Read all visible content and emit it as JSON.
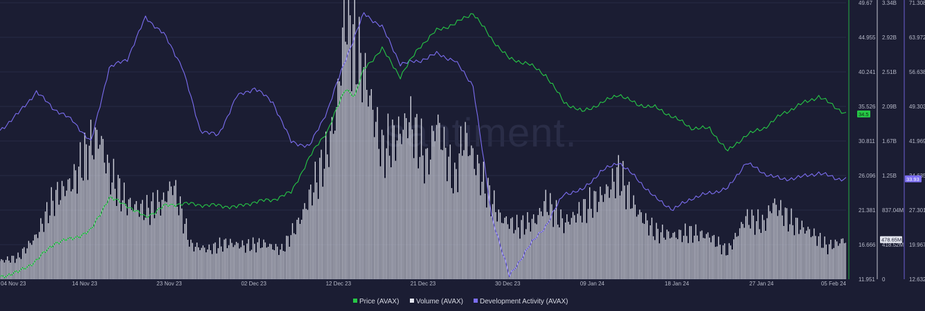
{
  "chart_data": {
    "type": "line",
    "watermark": "santiment.",
    "x_ticks": [
      "04 Nov 23",
      "14 Nov 23",
      "23 Nov 23",
      "02 Dec 23",
      "12 Dec 23",
      "21 Dec 23",
      "30 Dec 23",
      "09 Jan 24",
      "18 Jan 24",
      "27 Jan 24",
      "05 Feb 24"
    ],
    "x_range": [
      "2023-11-04",
      "2024-02-05"
    ],
    "axes": {
      "price": {
        "ticks": [
          "49.67",
          "44.955",
          "40.241",
          "35.526",
          "30.811",
          "26.096",
          "21.381",
          "16.666",
          "11.951"
        ],
        "range": [
          11.951,
          49.67
        ],
        "color": "#26c846"
      },
      "volume": {
        "ticks": [
          "3.34B",
          "2.92B",
          "2.51B",
          "2.09B",
          "1.67B",
          "1.25B",
          "837.04M",
          "418.52M",
          "0"
        ],
        "range": [
          0,
          3.34
        ],
        "unit": "B",
        "color": "#e3e5ee"
      },
      "dev": {
        "ticks": [
          "71.308",
          "63.972",
          "56.638",
          "49.303",
          "41.969",
          "34.635",
          "27.301",
          "19.967",
          "12.632"
        ],
        "range": [
          12.632,
          71.308
        ],
        "color": "#7c6ef2"
      }
    },
    "last_values": {
      "price": "34.5",
      "volume": "478.65M",
      "dev": "33.93"
    },
    "series": [
      {
        "name": "Price (AVAX)",
        "color": "#26c846",
        "axis": "price",
        "x": [
          "2023-11-04",
          "2023-11-06",
          "2023-11-08",
          "2023-11-10",
          "2023-11-12",
          "2023-11-14",
          "2023-11-16",
          "2023-11-18",
          "2023-11-20",
          "2023-11-22",
          "2023-11-24",
          "2023-11-26",
          "2023-11-28",
          "2023-11-30",
          "2023-12-02",
          "2023-12-04",
          "2023-12-06",
          "2023-12-08",
          "2023-12-09",
          "2023-12-10",
          "2023-12-12",
          "2023-12-13",
          "2023-12-14",
          "2023-12-16",
          "2023-12-18",
          "2023-12-20",
          "2023-12-22",
          "2023-12-24",
          "2023-12-26",
          "2023-12-28",
          "2023-12-30",
          "2024-01-01",
          "2024-01-03",
          "2024-01-05",
          "2024-01-07",
          "2024-01-09",
          "2024-01-11",
          "2024-01-13",
          "2024-01-15",
          "2024-01-17",
          "2024-01-19",
          "2024-01-21",
          "2024-01-23",
          "2024-01-25",
          "2024-01-27",
          "2024-01-29",
          "2024-01-31",
          "2024-02-02",
          "2024-02-04",
          "2024-02-05"
        ],
        "values": [
          12.3,
          12.9,
          14.5,
          16.9,
          17.5,
          18.6,
          23.1,
          22.0,
          20.4,
          21.9,
          22.3,
          22.1,
          22.0,
          21.8,
          22.5,
          22.8,
          23.8,
          28.5,
          30.5,
          32.2,
          38.0,
          36.9,
          40.6,
          43.4,
          39.6,
          43.5,
          45.9,
          46.8,
          48.3,
          44.8,
          42.0,
          41.4,
          39.8,
          36.1,
          34.8,
          35.9,
          37.2,
          35.8,
          35.4,
          34.1,
          32.6,
          32.5,
          29.4,
          31.6,
          32.6,
          34.5,
          35.8,
          36.9,
          35.3,
          34.5
        ]
      },
      {
        "name": "Volume (AVAX)",
        "color": "#e3e5ee",
        "axis": "volume",
        "x": [
          "2023-11-04",
          "2023-11-06",
          "2023-11-08",
          "2023-11-10",
          "2023-11-12",
          "2023-11-14",
          "2023-11-15",
          "2023-11-16",
          "2023-11-18",
          "2023-11-20",
          "2023-11-22",
          "2023-11-23",
          "2023-11-25",
          "2023-11-27",
          "2023-11-29",
          "2023-12-01",
          "2023-12-03",
          "2023-12-05",
          "2023-12-07",
          "2023-12-09",
          "2023-12-10",
          "2023-12-11",
          "2023-12-12",
          "2023-12-13",
          "2023-12-14",
          "2023-12-16",
          "2023-12-18",
          "2023-12-19",
          "2023-12-21",
          "2023-12-22",
          "2023-12-24",
          "2023-12-25",
          "2023-12-27",
          "2023-12-29",
          "2023-12-31",
          "2024-01-02",
          "2024-01-03",
          "2024-01-05",
          "2024-01-07",
          "2024-01-09",
          "2024-01-10",
          "2024-01-11",
          "2024-01-13",
          "2024-01-15",
          "2024-01-17",
          "2024-01-19",
          "2024-01-21",
          "2024-01-23",
          "2024-01-25",
          "2024-01-27",
          "2024-01-28",
          "2024-01-30",
          "2024-02-01",
          "2024-02-03",
          "2024-02-05"
        ],
        "values": [
          0.22,
          0.26,
          0.52,
          0.98,
          1.18,
          1.62,
          1.72,
          1.28,
          0.91,
          0.83,
          0.94,
          1.16,
          0.41,
          0.36,
          0.44,
          0.4,
          0.43,
          0.35,
          0.72,
          1.25,
          1.53,
          2.02,
          3.3,
          2.82,
          2.52,
          1.55,
          1.76,
          1.95,
          1.38,
          1.92,
          1.16,
          1.76,
          1.2,
          0.74,
          0.63,
          0.72,
          0.94,
          0.67,
          0.83,
          0.99,
          1.1,
          1.27,
          0.83,
          0.57,
          0.53,
          0.56,
          0.52,
          0.33,
          0.74,
          0.66,
          0.92,
          0.69,
          0.58,
          0.39,
          0.48
        ]
      },
      {
        "name": "Development Activity (AVAX)",
        "color": "#7c6ef2",
        "axis": "dev",
        "x": [
          "2023-11-04",
          "2023-11-06",
          "2023-11-08",
          "2023-11-10",
          "2023-11-12",
          "2023-11-14",
          "2023-11-16",
          "2023-11-18",
          "2023-11-20",
          "2023-11-22",
          "2023-11-24",
          "2023-11-26",
          "2023-11-28",
          "2023-11-30",
          "2023-12-02",
          "2023-12-04",
          "2023-12-06",
          "2023-12-08",
          "2023-12-10",
          "2023-12-12",
          "2023-12-14",
          "2023-12-16",
          "2023-12-18",
          "2023-12-20",
          "2023-12-22",
          "2023-12-24",
          "2023-12-26",
          "2023-12-28",
          "2023-12-30",
          "2024-01-01",
          "2024-01-03",
          "2024-01-05",
          "2024-01-07",
          "2024-01-09",
          "2024-01-11",
          "2024-01-13",
          "2024-01-15",
          "2024-01-17",
          "2024-01-19",
          "2024-01-21",
          "2024-01-23",
          "2024-01-25",
          "2024-01-27",
          "2024-01-29",
          "2024-01-31",
          "2024-02-02",
          "2024-02-04",
          "2024-02-05"
        ],
        "values": [
          44.2,
          47.8,
          52.4,
          48.7,
          46.3,
          41.7,
          57.5,
          59.4,
          68.2,
          64.7,
          57.9,
          44.3,
          43.1,
          51.4,
          53.2,
          50.2,
          41.8,
          40.8,
          48.5,
          59.4,
          69.0,
          66.2,
          58.4,
          58.9,
          60.5,
          59.0,
          53.8,
          26.5,
          13.2,
          19.2,
          24.0,
          30.8,
          31.5,
          35.4,
          37.5,
          34.0,
          29.9,
          27.4,
          29.8,
          30.9,
          31.9,
          37.4,
          35.1,
          33.8,
          34.3,
          35.2,
          34.0,
          33.9
        ]
      }
    ],
    "legend": [
      "Price (AVAX)",
      "Volume (AVAX)",
      "Development Activity (AVAX)"
    ],
    "legend_position": "bottom-center",
    "grid": true
  }
}
